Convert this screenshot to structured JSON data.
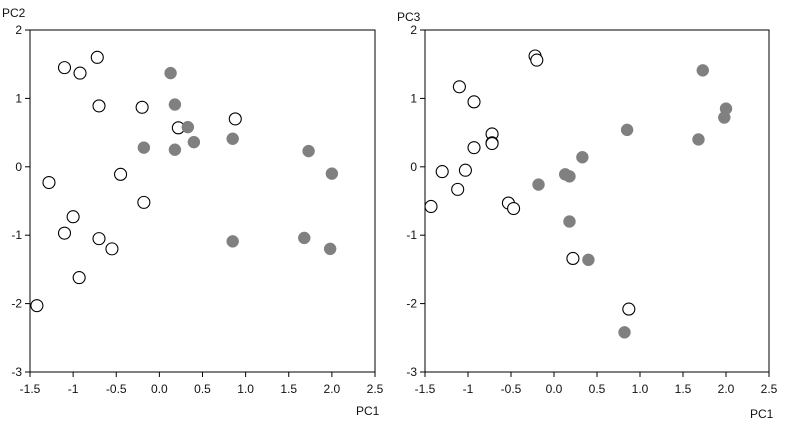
{
  "chart_data": [
    {
      "type": "scatter",
      "xlabel": "PC1",
      "ylabel": "PC2",
      "xlim": [
        -1.5,
        2.5
      ],
      "ylim": [
        -3,
        2
      ],
      "xticks": [
        "-1.5",
        "-1",
        "-0.5",
        "0.0",
        "0.5",
        "1.0",
        "1.5",
        "2.0",
        "2.5"
      ],
      "yticks": [
        "2",
        "1",
        "0",
        "-1",
        "-2",
        "-3"
      ],
      "grid": false,
      "series": [
        {
          "marker": "open-circle",
          "color": "#000000",
          "points": [
            [
              -1.1,
              1.45
            ],
            [
              -0.92,
              1.37
            ],
            [
              -0.72,
              1.6
            ],
            [
              -0.7,
              0.89
            ],
            [
              -0.2,
              0.87
            ],
            [
              0.22,
              0.57
            ],
            [
              0.88,
              0.7
            ],
            [
              -1.28,
              -0.23
            ],
            [
              -0.45,
              -0.11
            ],
            [
              -0.18,
              -0.52
            ],
            [
              -1.0,
              -0.73
            ],
            [
              -1.1,
              -0.97
            ],
            [
              -0.7,
              -1.05
            ],
            [
              -0.55,
              -1.2
            ],
            [
              -0.93,
              -1.62
            ],
            [
              -1.42,
              -2.03
            ]
          ]
        },
        {
          "marker": "filled-circle",
          "color": "#808080",
          "points": [
            [
              0.13,
              1.37
            ],
            [
              0.18,
              0.91
            ],
            [
              0.33,
              0.58
            ],
            [
              0.4,
              0.36
            ],
            [
              0.18,
              0.25
            ],
            [
              -0.18,
              0.28
            ],
            [
              0.85,
              0.41
            ],
            [
              1.73,
              0.23
            ],
            [
              2.0,
              -0.1
            ],
            [
              0.85,
              -1.09
            ],
            [
              1.68,
              -1.04
            ],
            [
              1.98,
              -1.2
            ]
          ]
        }
      ]
    },
    {
      "type": "scatter",
      "xlabel": "PC1",
      "ylabel": "PC3",
      "xlim": [
        -1.5,
        2.5
      ],
      "ylim": [
        -3,
        2
      ],
      "xticks": [
        "-1.5",
        "-1",
        "-0.5",
        "0.0",
        "0.5",
        "1.0",
        "1.5",
        "2.0",
        "2.5"
      ],
      "yticks": [
        "2",
        "1",
        "0",
        "-1",
        "-2",
        "-3"
      ],
      "grid": false,
      "series": [
        {
          "marker": "open-circle",
          "color": "#000000",
          "points": [
            [
              -0.22,
              1.62
            ],
            [
              -0.2,
              1.56
            ],
            [
              -1.1,
              1.17
            ],
            [
              -0.93,
              0.95
            ],
            [
              -0.72,
              0.48
            ],
            [
              -0.72,
              0.35
            ],
            [
              -0.72,
              0.34
            ],
            [
              -0.93,
              0.28
            ],
            [
              -1.3,
              -0.07
            ],
            [
              -1.03,
              -0.05
            ],
            [
              -1.12,
              -0.33
            ],
            [
              -1.43,
              -0.58
            ],
            [
              -0.53,
              -0.53
            ],
            [
              -0.47,
              -0.61
            ],
            [
              0.22,
              -1.34
            ],
            [
              0.87,
              -2.08
            ]
          ]
        },
        {
          "marker": "filled-circle",
          "color": "#808080",
          "points": [
            [
              1.73,
              1.41
            ],
            [
              2.0,
              0.85
            ],
            [
              1.98,
              0.72
            ],
            [
              1.68,
              0.4
            ],
            [
              0.85,
              0.54
            ],
            [
              0.33,
              0.14
            ],
            [
              0.13,
              -0.11
            ],
            [
              0.18,
              -0.14
            ],
            [
              -0.18,
              -0.26
            ],
            [
              0.18,
              -0.8
            ],
            [
              0.4,
              -1.36
            ],
            [
              0.82,
              -2.42
            ]
          ]
        }
      ]
    }
  ]
}
